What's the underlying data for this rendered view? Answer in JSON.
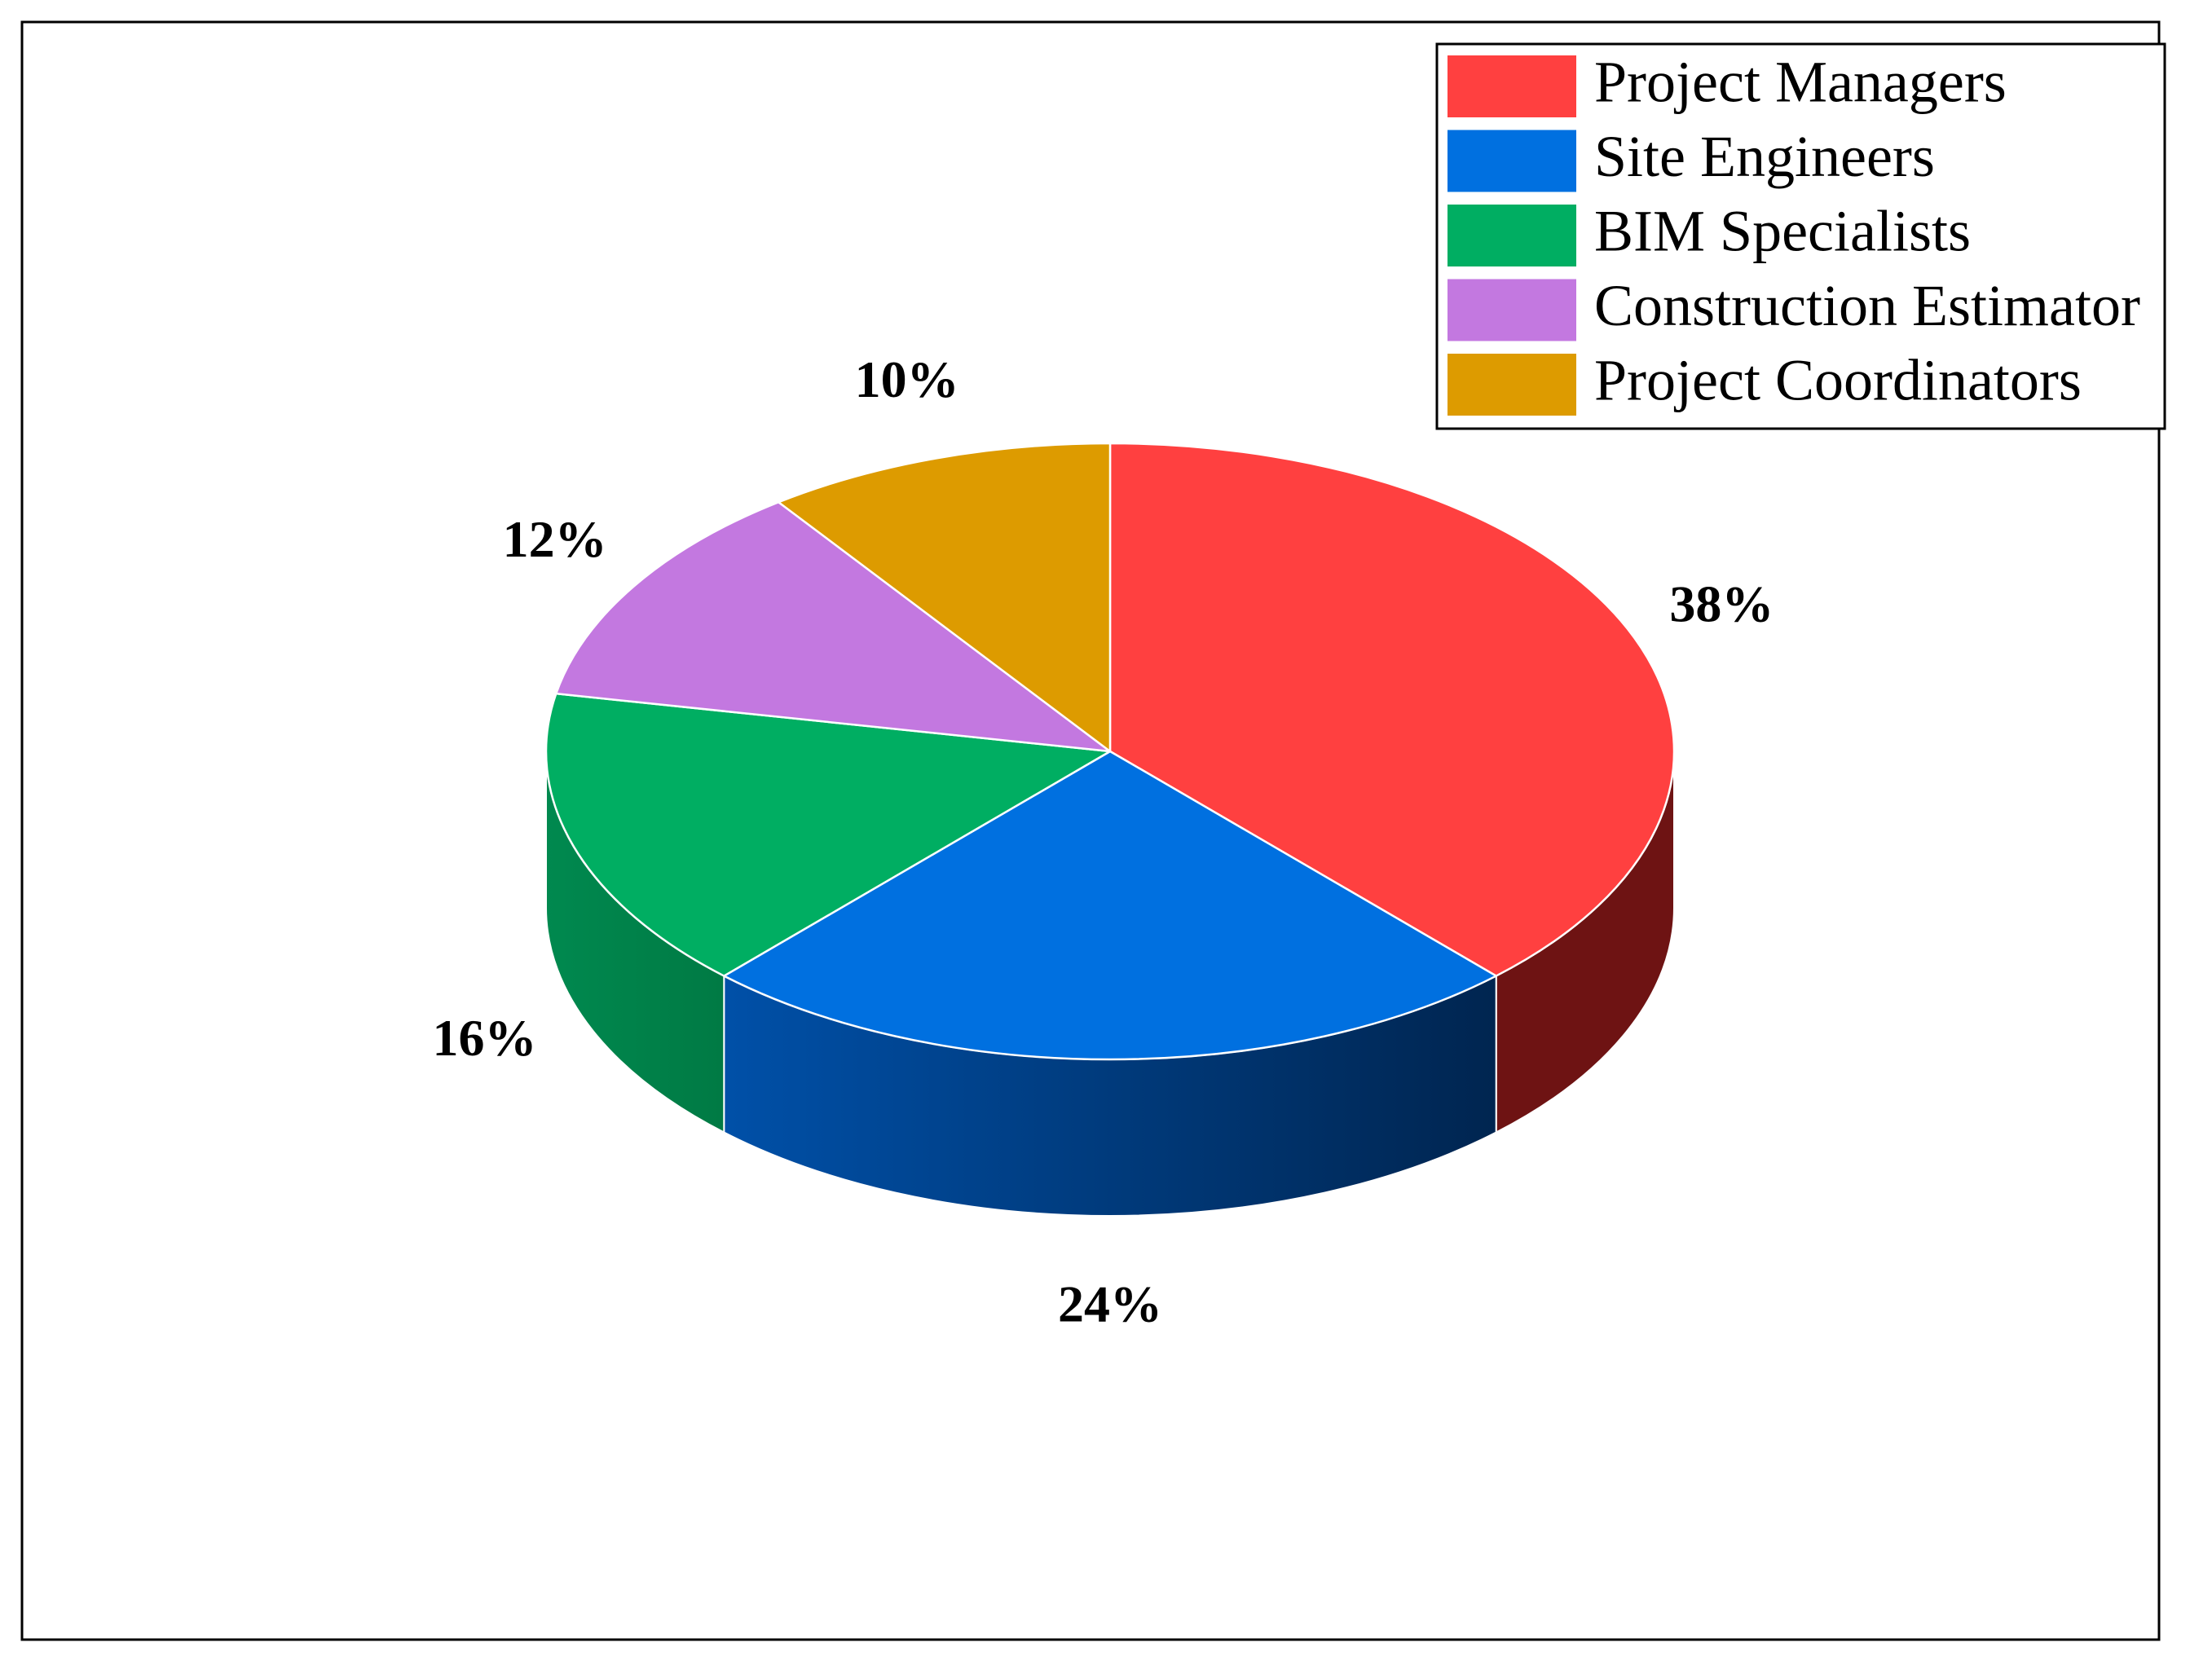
{
  "chart_data": {
    "type": "pie",
    "style": "3d",
    "title": "",
    "legend_position": "top-right",
    "slices": [
      {
        "label": "Project Managers",
        "value": 38,
        "value_label": "38%",
        "color": "#ff4040",
        "side_color": "#6e1313"
      },
      {
        "label": "Site Engineers",
        "value": 24,
        "value_label": "24%",
        "color": "#0070e0",
        "side_color": "#002b5c"
      },
      {
        "label": "BIM Specialists",
        "value": 16,
        "value_label": "16%",
        "color": "#00ae62",
        "side_color": "#00804a"
      },
      {
        "label": "Construction Estimator",
        "value": 12,
        "value_label": "12%",
        "color": "#c378e0",
        "side_color": "#7a4a8c"
      },
      {
        "label": "Project Coordinators",
        "value": 10,
        "value_label": "10%",
        "color": "#dd9b00",
        "side_color": "#8a6100"
      }
    ]
  }
}
